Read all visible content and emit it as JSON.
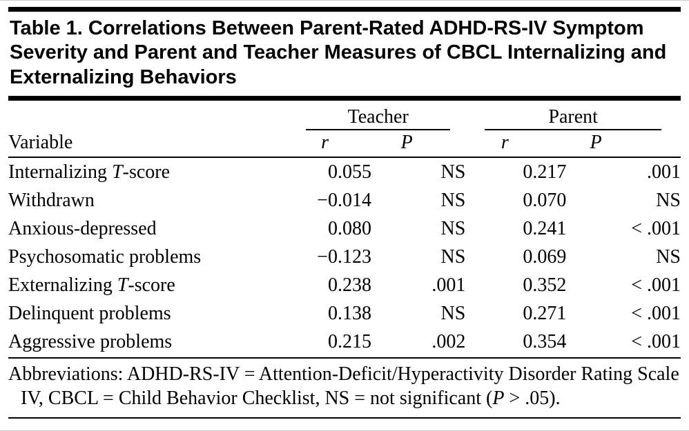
{
  "table": {
    "title": "Table 1. Correlations Between Parent-Rated ADHD-RS-IV Symptom Severity and Parent and Teacher Measures of CBCL Internalizing and Externalizing Behaviors",
    "col_groups": [
      {
        "label": "Teacher"
      },
      {
        "label": "Parent"
      }
    ],
    "headers": {
      "variable": "Variable",
      "r": "r",
      "p": "P"
    },
    "rows": [
      {
        "var_pre": "Internalizing ",
        "var_it": "T",
        "var_post": "-score",
        "teacher_r": "0.055",
        "teacher_p": "NS",
        "parent_r": "0.217",
        "parent_p": ".001"
      },
      {
        "var_pre": "Withdrawn",
        "teacher_r": "−0.014",
        "teacher_p": "NS",
        "parent_r": "0.070",
        "parent_p": "NS"
      },
      {
        "var_pre": "Anxious-depressed",
        "teacher_r": "0.080",
        "teacher_p": "NS",
        "parent_r": "0.241",
        "parent_p": "< .001"
      },
      {
        "var_pre": "Psychosomatic problems",
        "teacher_r": "−0.123",
        "teacher_p": "NS",
        "parent_r": "0.069",
        "parent_p": "NS"
      },
      {
        "var_pre": "Externalizing ",
        "var_it": "T",
        "var_post": "-score",
        "teacher_r": "0.238",
        "teacher_p": ".001",
        "parent_r": "0.352",
        "parent_p": "< .001"
      },
      {
        "var_pre": "Delinquent problems",
        "teacher_r": "0.138",
        "teacher_p": "NS",
        "parent_r": "0.271",
        "parent_p": "< .001"
      },
      {
        "var_pre": "Aggressive problems",
        "teacher_r": "0.215",
        "teacher_p": ".002",
        "parent_r": "0.354",
        "parent_p": "< .001"
      }
    ],
    "footnote": {
      "pre": "Abbreviations: ADHD-RS-IV = Attention-Deficit/Hyperactivity Disorder Rating Scale IV, CBCL = Child Behavior Checklist, NS = not significant (",
      "it": "P",
      "post": " > .05)."
    }
  }
}
